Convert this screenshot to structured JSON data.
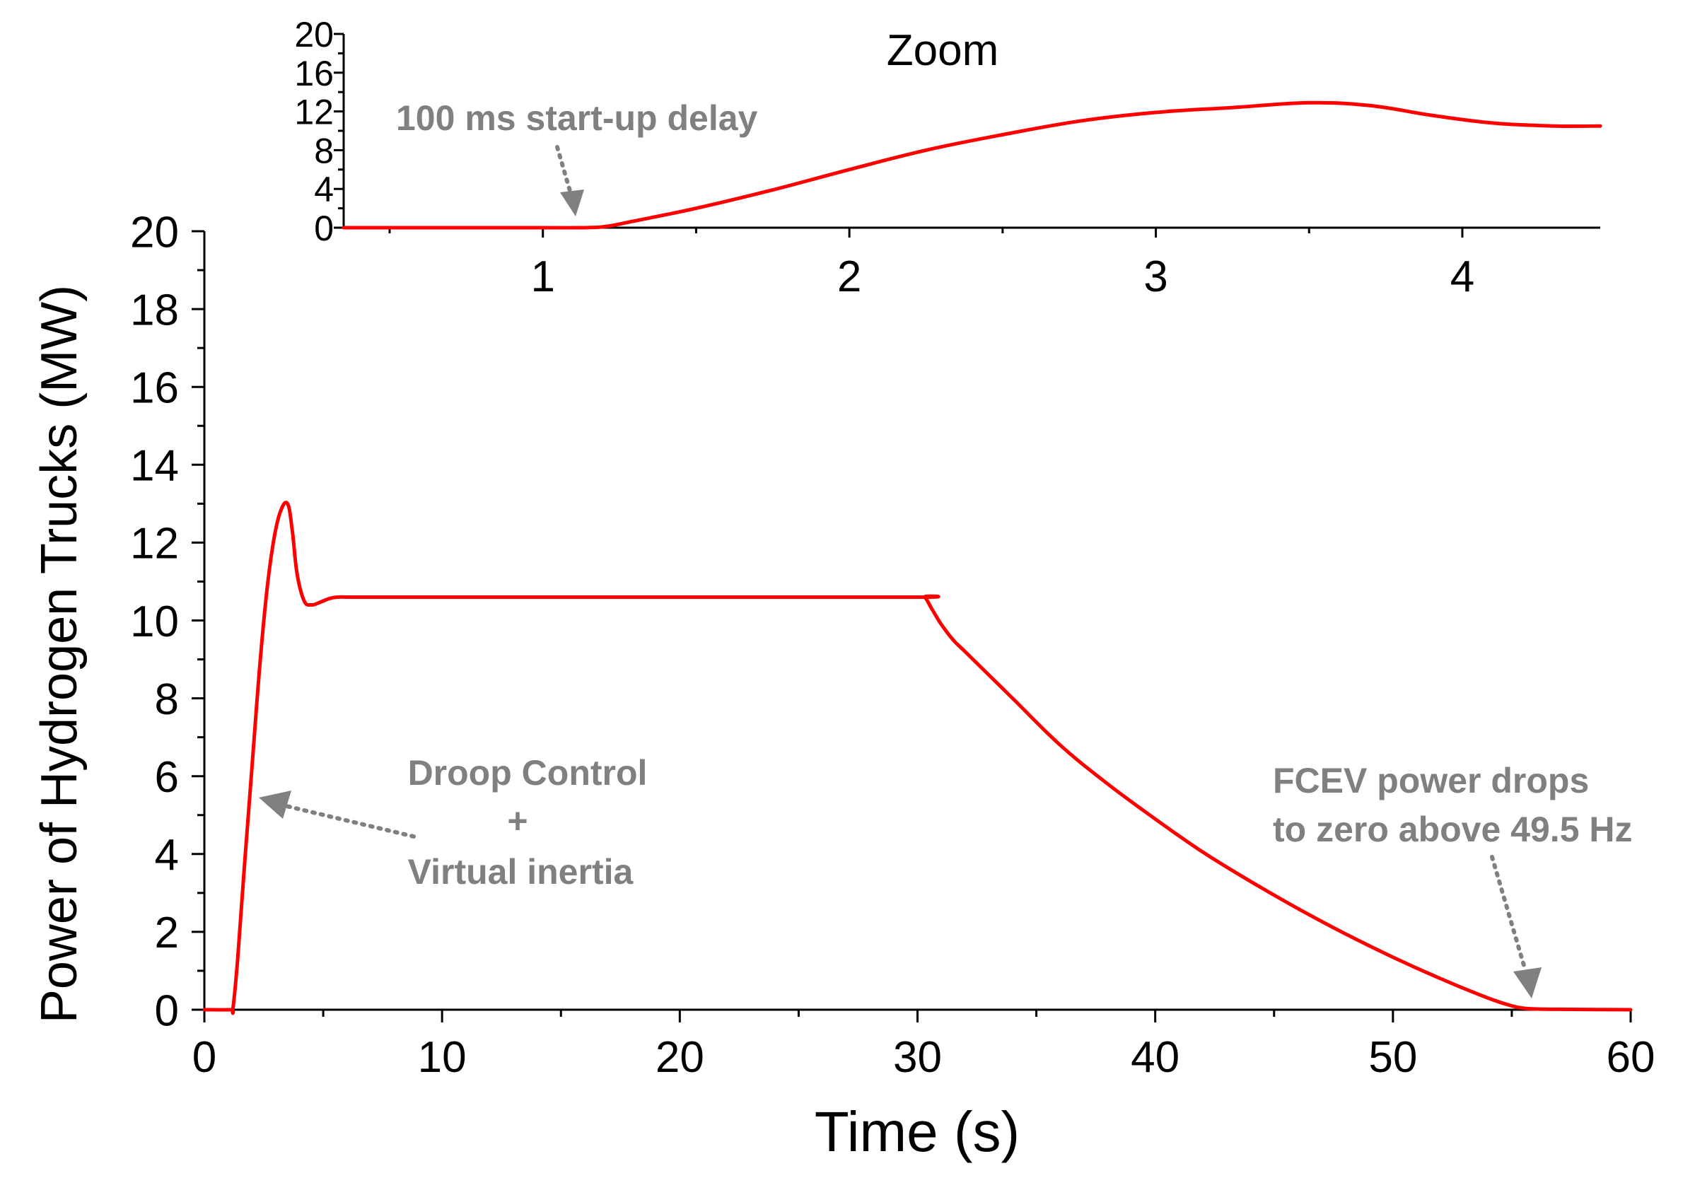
{
  "chart_data": [
    {
      "id": "main",
      "type": "line",
      "xlabel": "Time (s)",
      "ylabel": "Power of Hydrogen Trucks (MW)",
      "xlim": [
        0,
        60
      ],
      "ylim": [
        0,
        20
      ],
      "xticks": [
        0,
        10,
        20,
        30,
        40,
        50,
        60
      ],
      "yticks": [
        0,
        2,
        4,
        6,
        8,
        10,
        12,
        14,
        16,
        18,
        20
      ],
      "grid": false,
      "series": [
        {
          "color": "#ff0000",
          "x": [
            0,
            1.1,
            1.2,
            1.4,
            1.7,
            2.0,
            2.3,
            2.6,
            2.9,
            3.2,
            3.5,
            3.7,
            3.9,
            4.2,
            4.5,
            4.8,
            5.2,
            5.6,
            6.5,
            10,
            20,
            30,
            30.3,
            30.6,
            31,
            31.5,
            32,
            34,
            36,
            38,
            40,
            42,
            44,
            46,
            48,
            50,
            52,
            54,
            55,
            55.5,
            56,
            57,
            60
          ],
          "y": [
            0,
            0,
            0.02,
            1.3,
            3.8,
            6.2,
            8.6,
            10.6,
            12.0,
            12.8,
            13.0,
            12.3,
            11.2,
            10.5,
            10.4,
            10.45,
            10.55,
            10.6,
            10.6,
            10.6,
            10.6,
            10.6,
            10.6,
            10.3,
            9.9,
            9.5,
            9.2,
            8.0,
            6.8,
            5.8,
            4.9,
            4.05,
            3.3,
            2.6,
            1.95,
            1.35,
            0.8,
            0.3,
            0.1,
            0.04,
            0.02,
            0.01,
            0
          ]
        }
      ],
      "annotations": [
        {
          "id": "droop",
          "lines": [
            "Droop Control",
            "+",
            "Virtual inertia"
          ],
          "points_to": [
            2.2,
            5.6
          ]
        },
        {
          "id": "fcev",
          "lines": [
            "FCEV power drops",
            "to zero above 49.5 Hz"
          ],
          "points_to": [
            55.8,
            0.3
          ]
        }
      ]
    },
    {
      "id": "zoom",
      "type": "line",
      "title": "Zoom",
      "xlim": [
        0.35,
        4.45
      ],
      "ylim": [
        0,
        20
      ],
      "xticks": [
        1,
        2,
        3,
        4
      ],
      "yticks": [
        0,
        4,
        8,
        12,
        16,
        20
      ],
      "grid": false,
      "series": [
        {
          "color": "#ff0000",
          "x": [
            0.35,
            1.0,
            1.1,
            1.2,
            1.3,
            1.5,
            1.75,
            2.0,
            2.25,
            2.5,
            2.75,
            3.0,
            3.25,
            3.5,
            3.7,
            3.9,
            4.1,
            4.3,
            4.45
          ],
          "y": [
            0,
            0,
            0,
            0.1,
            0.7,
            2.0,
            3.9,
            6.0,
            8.0,
            9.6,
            11.0,
            11.9,
            12.4,
            12.9,
            12.6,
            11.6,
            10.8,
            10.5,
            10.5
          ]
        }
      ],
      "annotations": [
        {
          "id": "delay",
          "lines": [
            "100 ms start-up delay"
          ],
          "points_to": [
            1.1,
            0.8
          ]
        }
      ]
    }
  ],
  "colors": {
    "series": "#ff0000",
    "annotation": "#808080",
    "axis": "#000000"
  }
}
